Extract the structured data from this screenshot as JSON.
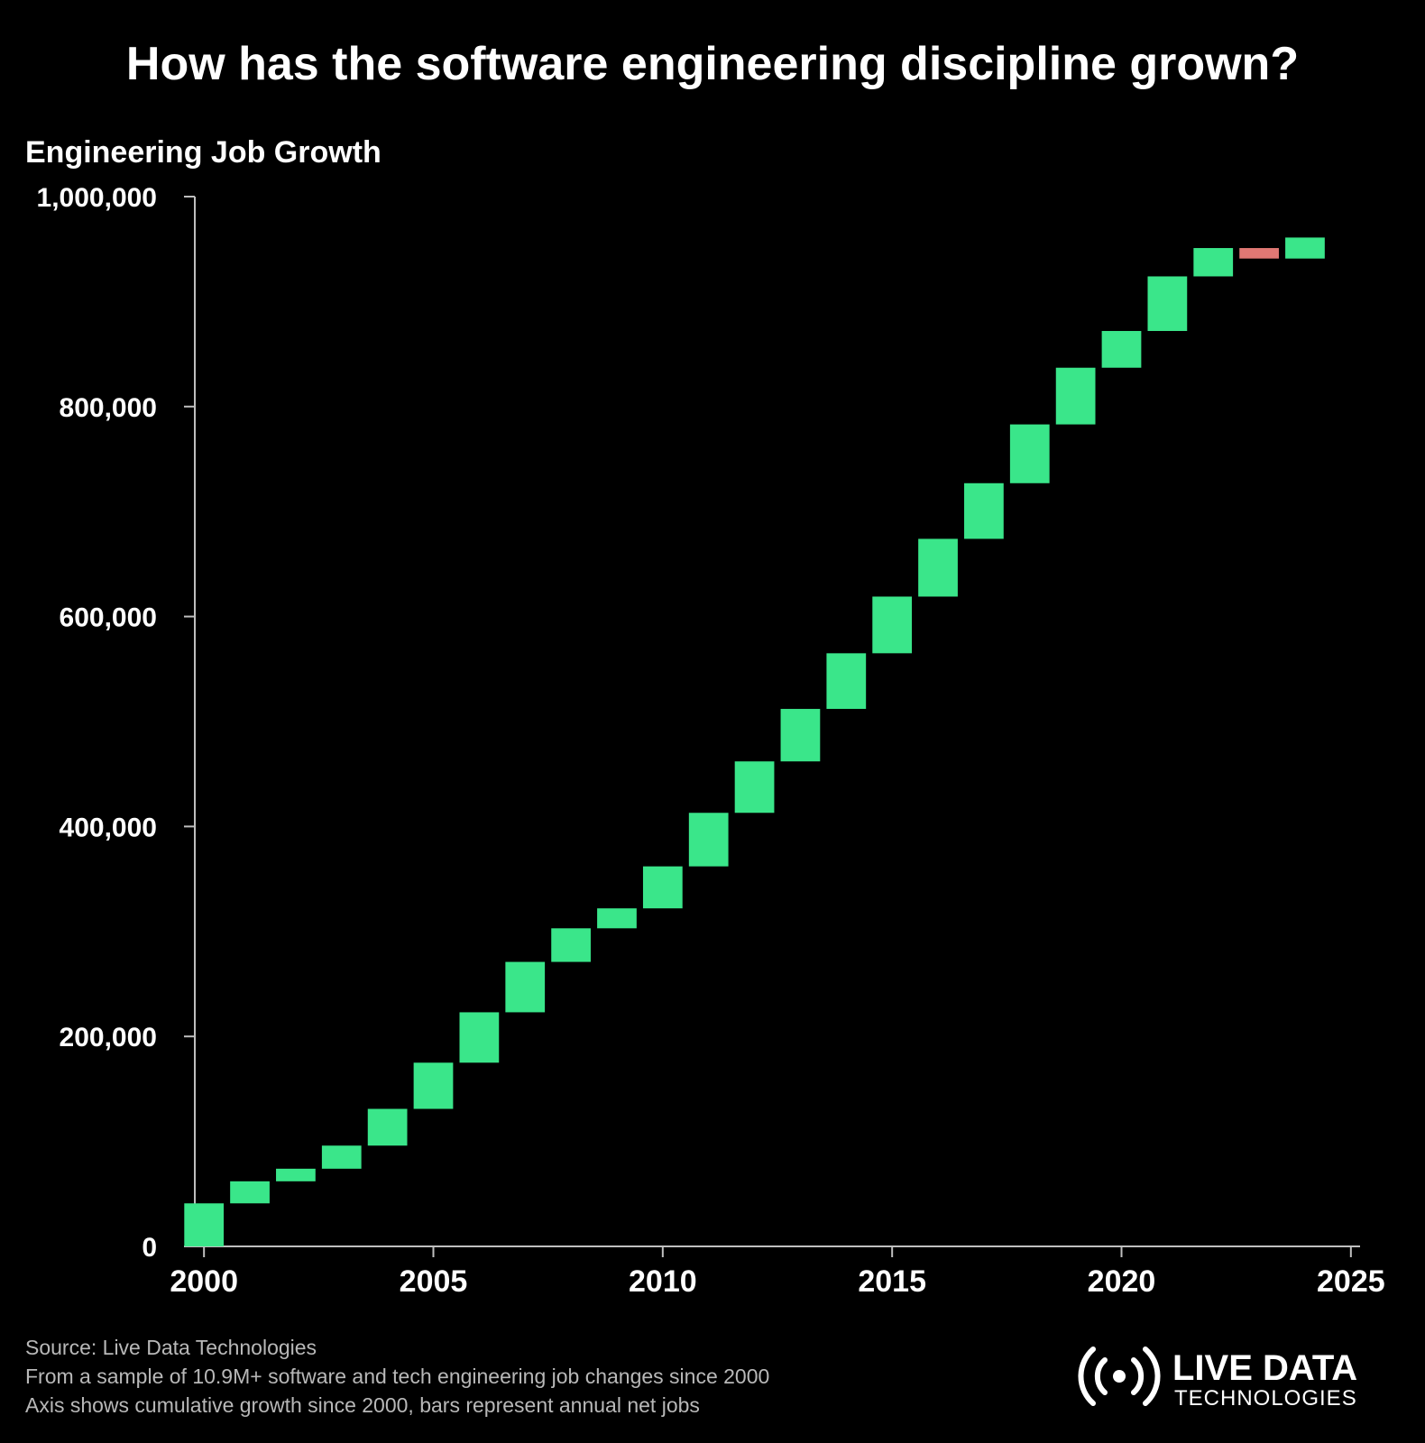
{
  "title": "How has the software engineering discipline grown?",
  "footer": {
    "source": "Source: Live Data Technologies",
    "note1": "From a sample of 10.9M+ software and tech engineering job changes since 2000",
    "note2": "Axis shows cumulative growth since 2000, bars represent annual net jobs"
  },
  "logo": {
    "line1": "LIVE DATA",
    "line2": "TECHNOLOGIES"
  },
  "colors": {
    "positive": "#3ae68a",
    "negative": "#e07874",
    "axis": "#bfbfbf",
    "background": "#000000"
  },
  "chart_data": {
    "type": "waterfall",
    "title": "How has the software engineering discipline grown?",
    "ylabel": "Engineering Job Growth",
    "xlabel": "",
    "ylim": [
      0,
      1000000
    ],
    "xlim": [
      1999.8,
      2025.2
    ],
    "yticks": [
      0,
      200000,
      400000,
      600000,
      800000,
      1000000
    ],
    "ytick_labels": [
      "0",
      "200,000",
      "400,000",
      "600,000",
      "800,000",
      "1,000,000"
    ],
    "xticks": [
      2000,
      2005,
      2010,
      2015,
      2020,
      2025
    ],
    "xtick_labels": [
      "2000",
      "2005",
      "2010",
      "2015",
      "2020",
      "2025"
    ],
    "grid": false,
    "series": [
      {
        "years": [
          2000,
          2001,
          2002,
          2003,
          2004,
          2005,
          2006,
          2007,
          2008,
          2009,
          2010,
          2011,
          2012,
          2013,
          2014,
          2015,
          2016,
          2017,
          2018,
          2019,
          2020,
          2021,
          2022,
          2023,
          2024
        ],
        "start": [
          0,
          41000,
          62000,
          74000,
          96000,
          131000,
          175000,
          223000,
          271000,
          303000,
          322000,
          362000,
          413000,
          462000,
          512000,
          565000,
          619000,
          674000,
          727000,
          783000,
          837000,
          872000,
          924000,
          951000,
          941000
        ],
        "end": [
          41000,
          62000,
          74000,
          96000,
          131000,
          175000,
          223000,
          271000,
          303000,
          322000,
          362000,
          413000,
          462000,
          512000,
          565000,
          619000,
          674000,
          727000,
          783000,
          837000,
          872000,
          924000,
          951000,
          941000,
          961000
        ]
      }
    ]
  }
}
